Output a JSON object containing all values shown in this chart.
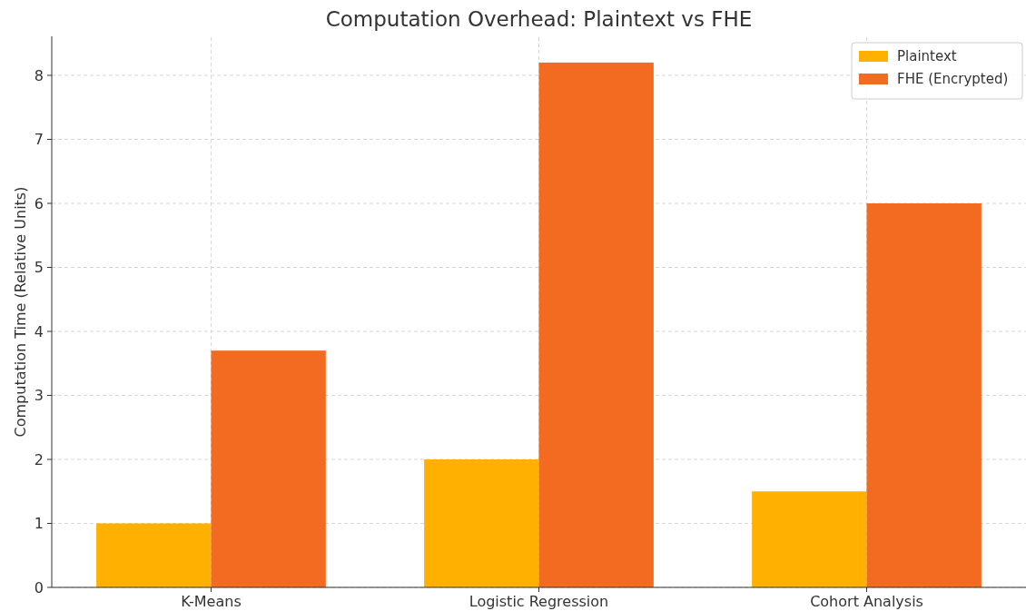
{
  "chart_data": {
    "type": "bar",
    "title": "Computation Overhead: Plaintext vs FHE",
    "ylabel": "Computation Time (Relative Units)",
    "categories": [
      "K-Means",
      "Logistic Regression",
      "Cohort Analysis"
    ],
    "series": [
      {
        "name": "Plaintext",
        "color": "#ffb000",
        "values": [
          1,
          2,
          1.5
        ]
      },
      {
        "name": "FHE (Encrypted)",
        "color": "#f26b21",
        "values": [
          3.7,
          8.2,
          6.0
        ]
      }
    ],
    "ylim": [
      0,
      8.61
    ],
    "yticks": [
      0,
      1,
      2,
      3,
      4,
      5,
      6,
      7,
      8
    ],
    "grid": true,
    "legend": "top right"
  }
}
